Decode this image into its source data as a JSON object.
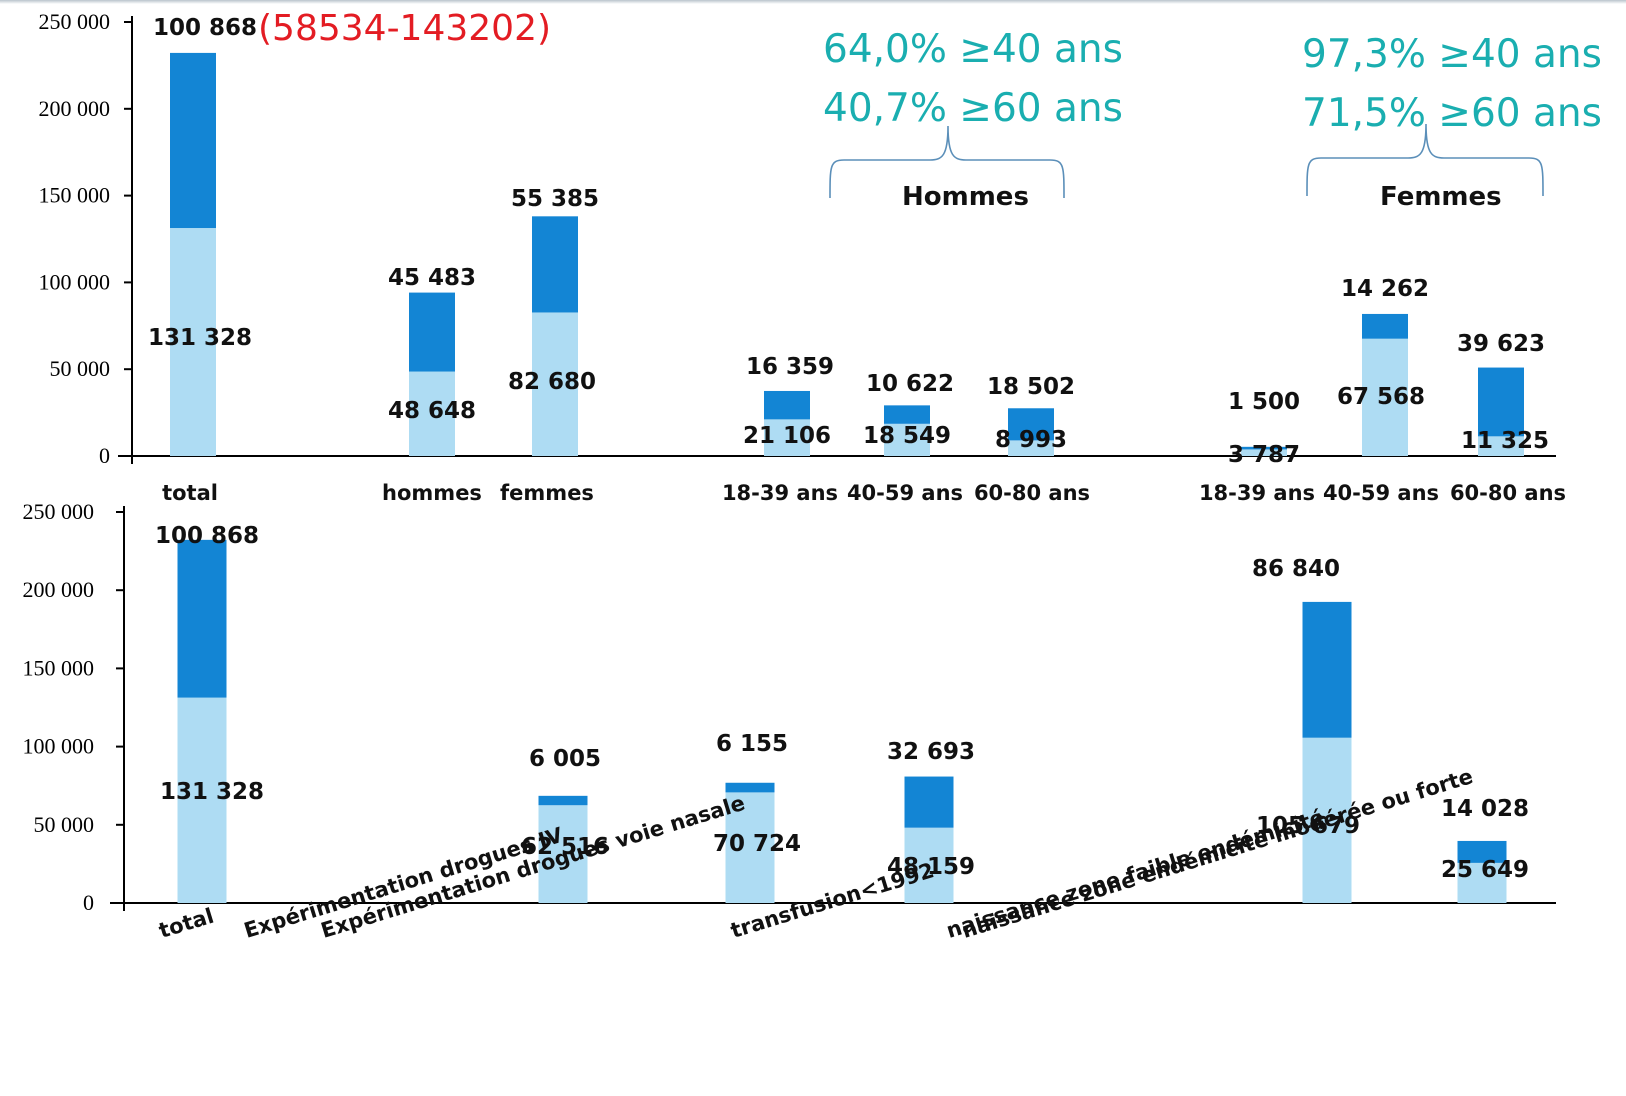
{
  "colors": {
    "dark": "#1385d4",
    "light": "#aedcf3",
    "annotation": "#1aaeb0",
    "highlight": "#e31c23",
    "axis": "#000000"
  },
  "chart_data": [
    {
      "type": "bar",
      "stacked": true,
      "title": "",
      "xlabel": "",
      "ylabel": "",
      "ylim": [
        0,
        250000
      ],
      "yticks": [
        "0",
        "50 000",
        "100 000",
        "150 000",
        "200 000",
        "250 000"
      ],
      "categories": [
        "total",
        "hommes",
        "femmes",
        "18-39 ans",
        "40-59 ans",
        "60-80 ans",
        "18-39 ans",
        "40-59 ans",
        "60-80 ans"
      ],
      "series": [
        {
          "values": [
            131328,
            48648,
            82680,
            21106,
            18549,
            8993,
            3787,
            67568,
            11325
          ],
          "labels": [
            "131 328",
            "48 648",
            "82 680",
            "21 106",
            "18 549",
            "8 993",
            "3 787",
            "67 568",
            "11 325"
          ]
        },
        {
          "values": [
            100868,
            45483,
            55385,
            16359,
            10622,
            18502,
            1500,
            14262,
            39623
          ],
          "labels": [
            "100 868",
            "45 483",
            "55 385",
            "16 359",
            "10 622",
            "18 502",
            "1 500",
            "14 262",
            "39 623"
          ]
        }
      ],
      "interval_label": "(58534-143202)",
      "groups": [
        {
          "label": "Hommes",
          "annotation_lines": [
            "64,0% ≥40 ans",
            "40,7% ≥60 ans"
          ]
        },
        {
          "label": "Femmes",
          "annotation_lines": [
            "97,3% ≥40 ans",
            "71,5% ≥60 ans"
          ]
        }
      ]
    },
    {
      "type": "bar",
      "stacked": true,
      "title": "",
      "xlabel": "",
      "ylabel": "",
      "ylim": [
        0,
        250000
      ],
      "yticks": [
        "0",
        "50 000",
        "100 000",
        "150 000",
        "200 000",
        "250 000"
      ],
      "categories": [
        "total",
        "Expérimentation drogues IV",
        "Expérimentation drogues voie nasale",
        "transfusion<1992",
        "naissance zone faible endémicité",
        "naissance zone endémicité modérée ou forte"
      ],
      "series": [
        {
          "values": [
            131328,
            62516,
            70724,
            48159,
            105679,
            25649
          ],
          "labels": [
            "131 328",
            "62 516",
            "70 724",
            "48 159",
            "105 679",
            "25 649"
          ]
        },
        {
          "values": [
            100868,
            6005,
            6155,
            32693,
            86840,
            14028
          ],
          "labels": [
            "100 868",
            "6 005",
            "6 155",
            "32 693",
            "86 840",
            "14 028"
          ]
        }
      ]
    }
  ]
}
